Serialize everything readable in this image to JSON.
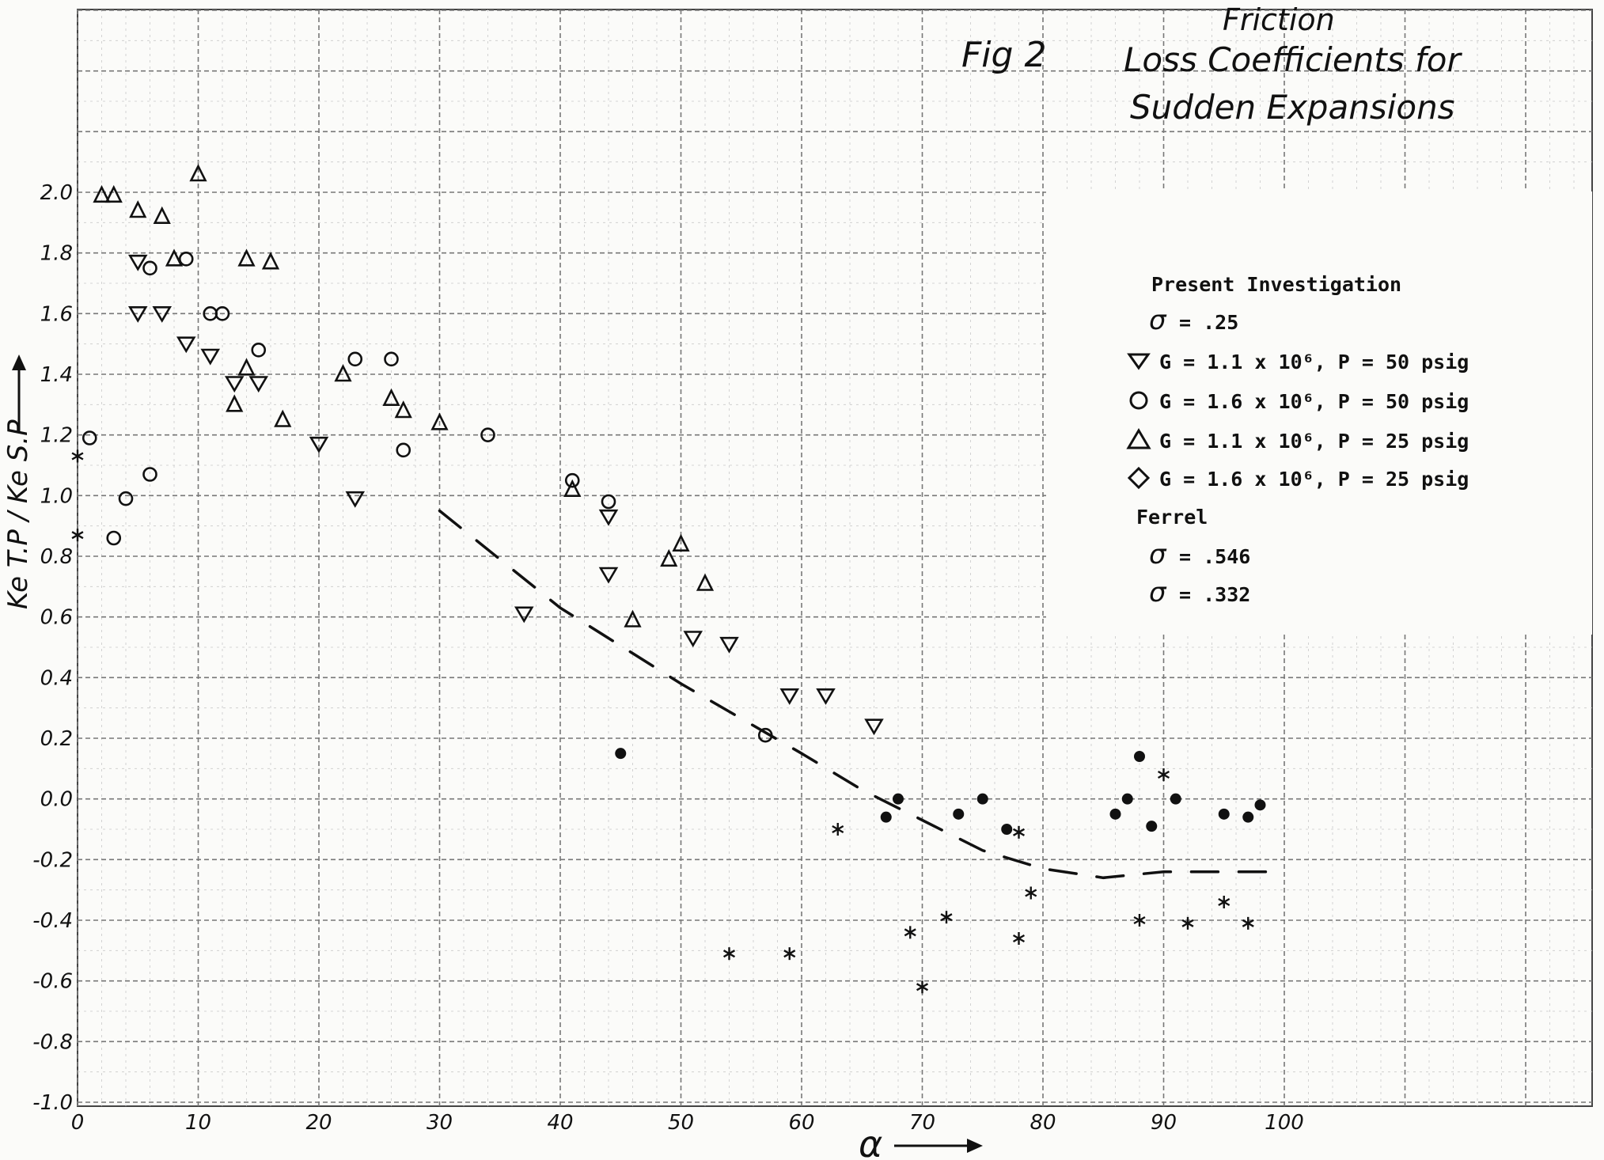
{
  "chart_data": {
    "type": "scatter",
    "title_prefix": "Fig 2",
    "title_top": "Friction",
    "title_line1": "Loss Coefficients for",
    "title_line2": "Sudden Expansions",
    "xlabel": "α",
    "ylabel": "Ke T.P / Ke S.P",
    "xlim": [
      0,
      100
    ],
    "ylim": [
      -1.0,
      2.0
    ],
    "x_ticks": [
      "0",
      "10",
      "20",
      "30",
      "40",
      "50",
      "60",
      "70",
      "80",
      "90",
      "100"
    ],
    "y_ticks": [
      "2.0",
      "1.8",
      "1.6",
      "1.4",
      "1.2",
      "1.0",
      "0.8",
      "0.6",
      "0.4",
      "0.2",
      "0.0",
      "-0.2",
      "-0.4",
      "-0.6",
      "-0.8",
      "-1.0"
    ],
    "grid": true,
    "legend_position": "right",
    "legend": {
      "heading_present": "Present Investigation",
      "sigma_present": "= .25",
      "entries": [
        {
          "marker": "triangle-down",
          "label": "G = 1.1 x 10⁶, P = 50 psig"
        },
        {
          "marker": "circle-open",
          "label": "G = 1.6 x 10⁶, P = 50 psig"
        },
        {
          "marker": "triangle-up",
          "label": "G = 1.1 x 10⁶, P = 25 psig"
        },
        {
          "marker": "diamond",
          "label": "G = 1.6 x 10⁶, P = 25 psig"
        }
      ],
      "heading_ferrel": "Ferrel",
      "sigma_ferrel_1": "= .546",
      "sigma_ferrel_2": "= .332"
    },
    "series": [
      {
        "marker": "triangle-down",
        "points": [
          [
            5,
            1.77
          ],
          [
            5,
            1.6
          ],
          [
            7,
            1.6
          ],
          [
            9,
            1.5
          ],
          [
            11,
            1.46
          ],
          [
            13,
            1.37
          ],
          [
            15,
            1.37
          ],
          [
            20,
            1.17
          ],
          [
            23,
            0.99
          ],
          [
            37,
            0.61
          ],
          [
            44,
            0.93
          ],
          [
            44,
            0.74
          ],
          [
            51,
            0.53
          ],
          [
            54,
            0.51
          ],
          [
            59,
            0.34
          ],
          [
            62,
            0.34
          ],
          [
            66,
            0.24
          ]
        ]
      },
      {
        "marker": "circle-open",
        "points": [
          [
            1,
            1.19
          ],
          [
            3,
            0.86
          ],
          [
            4,
            0.99
          ],
          [
            6,
            1.07
          ],
          [
            6,
            1.75
          ],
          [
            9,
            1.78
          ],
          [
            11,
            1.6
          ],
          [
            12,
            1.6
          ],
          [
            15,
            1.48
          ],
          [
            23,
            1.45
          ],
          [
            26,
            1.45
          ],
          [
            27,
            1.15
          ],
          [
            34,
            1.2
          ],
          [
            41,
            1.05
          ],
          [
            44,
            0.98
          ],
          [
            57,
            0.21
          ]
        ]
      },
      {
        "marker": "triangle-up",
        "points": [
          [
            2,
            1.99
          ],
          [
            3,
            1.99
          ],
          [
            5,
            1.94
          ],
          [
            7,
            1.92
          ],
          [
            8,
            1.78
          ],
          [
            10,
            2.06
          ],
          [
            14,
            1.78
          ],
          [
            16,
            1.77
          ],
          [
            13,
            1.3
          ],
          [
            14,
            1.42
          ],
          [
            17,
            1.25
          ],
          [
            22,
            1.4
          ],
          [
            26,
            1.32
          ],
          [
            27,
            1.28
          ],
          [
            30,
            1.24
          ],
          [
            41,
            1.02
          ],
          [
            46,
            0.59
          ],
          [
            49,
            0.79
          ],
          [
            50,
            0.84
          ],
          [
            52,
            0.71
          ]
        ]
      },
      {
        "marker": "dot-filled",
        "points": [
          [
            45,
            0.15
          ],
          [
            67,
            -0.06
          ],
          [
            68,
            0.0
          ],
          [
            73,
            -0.05
          ],
          [
            75,
            0.0
          ],
          [
            77,
            -0.1
          ],
          [
            86,
            -0.05
          ],
          [
            87,
            0.0
          ],
          [
            88,
            0.14
          ],
          [
            89,
            -0.09
          ],
          [
            91,
            0.0
          ],
          [
            95,
            -0.05
          ],
          [
            97,
            -0.06
          ],
          [
            98,
            -0.02
          ]
        ]
      },
      {
        "marker": "asterisk",
        "points": [
          [
            0,
            1.13
          ],
          [
            0,
            0.87
          ],
          [
            63,
            -0.1
          ],
          [
            78,
            -0.11
          ],
          [
            79,
            -0.31
          ],
          [
            90,
            0.08
          ],
          [
            54,
            -0.51
          ],
          [
            59,
            -0.51
          ],
          [
            69,
            -0.44
          ],
          [
            72,
            -0.39
          ],
          [
            70,
            -0.62
          ],
          [
            78,
            -0.46
          ],
          [
            88,
            -0.4
          ],
          [
            92,
            -0.41
          ],
          [
            95,
            -0.34
          ],
          [
            97,
            -0.41
          ]
        ]
      }
    ],
    "dashed_curve": [
      [
        30,
        0.95
      ],
      [
        40,
        0.63
      ],
      [
        50,
        0.38
      ],
      [
        60,
        0.15
      ],
      [
        65,
        0.03
      ],
      [
        70,
        -0.07
      ],
      [
        75,
        -0.17
      ],
      [
        80,
        -0.23
      ],
      [
        85,
        -0.26
      ],
      [
        90,
        -0.24
      ],
      [
        100,
        -0.24
      ]
    ]
  }
}
